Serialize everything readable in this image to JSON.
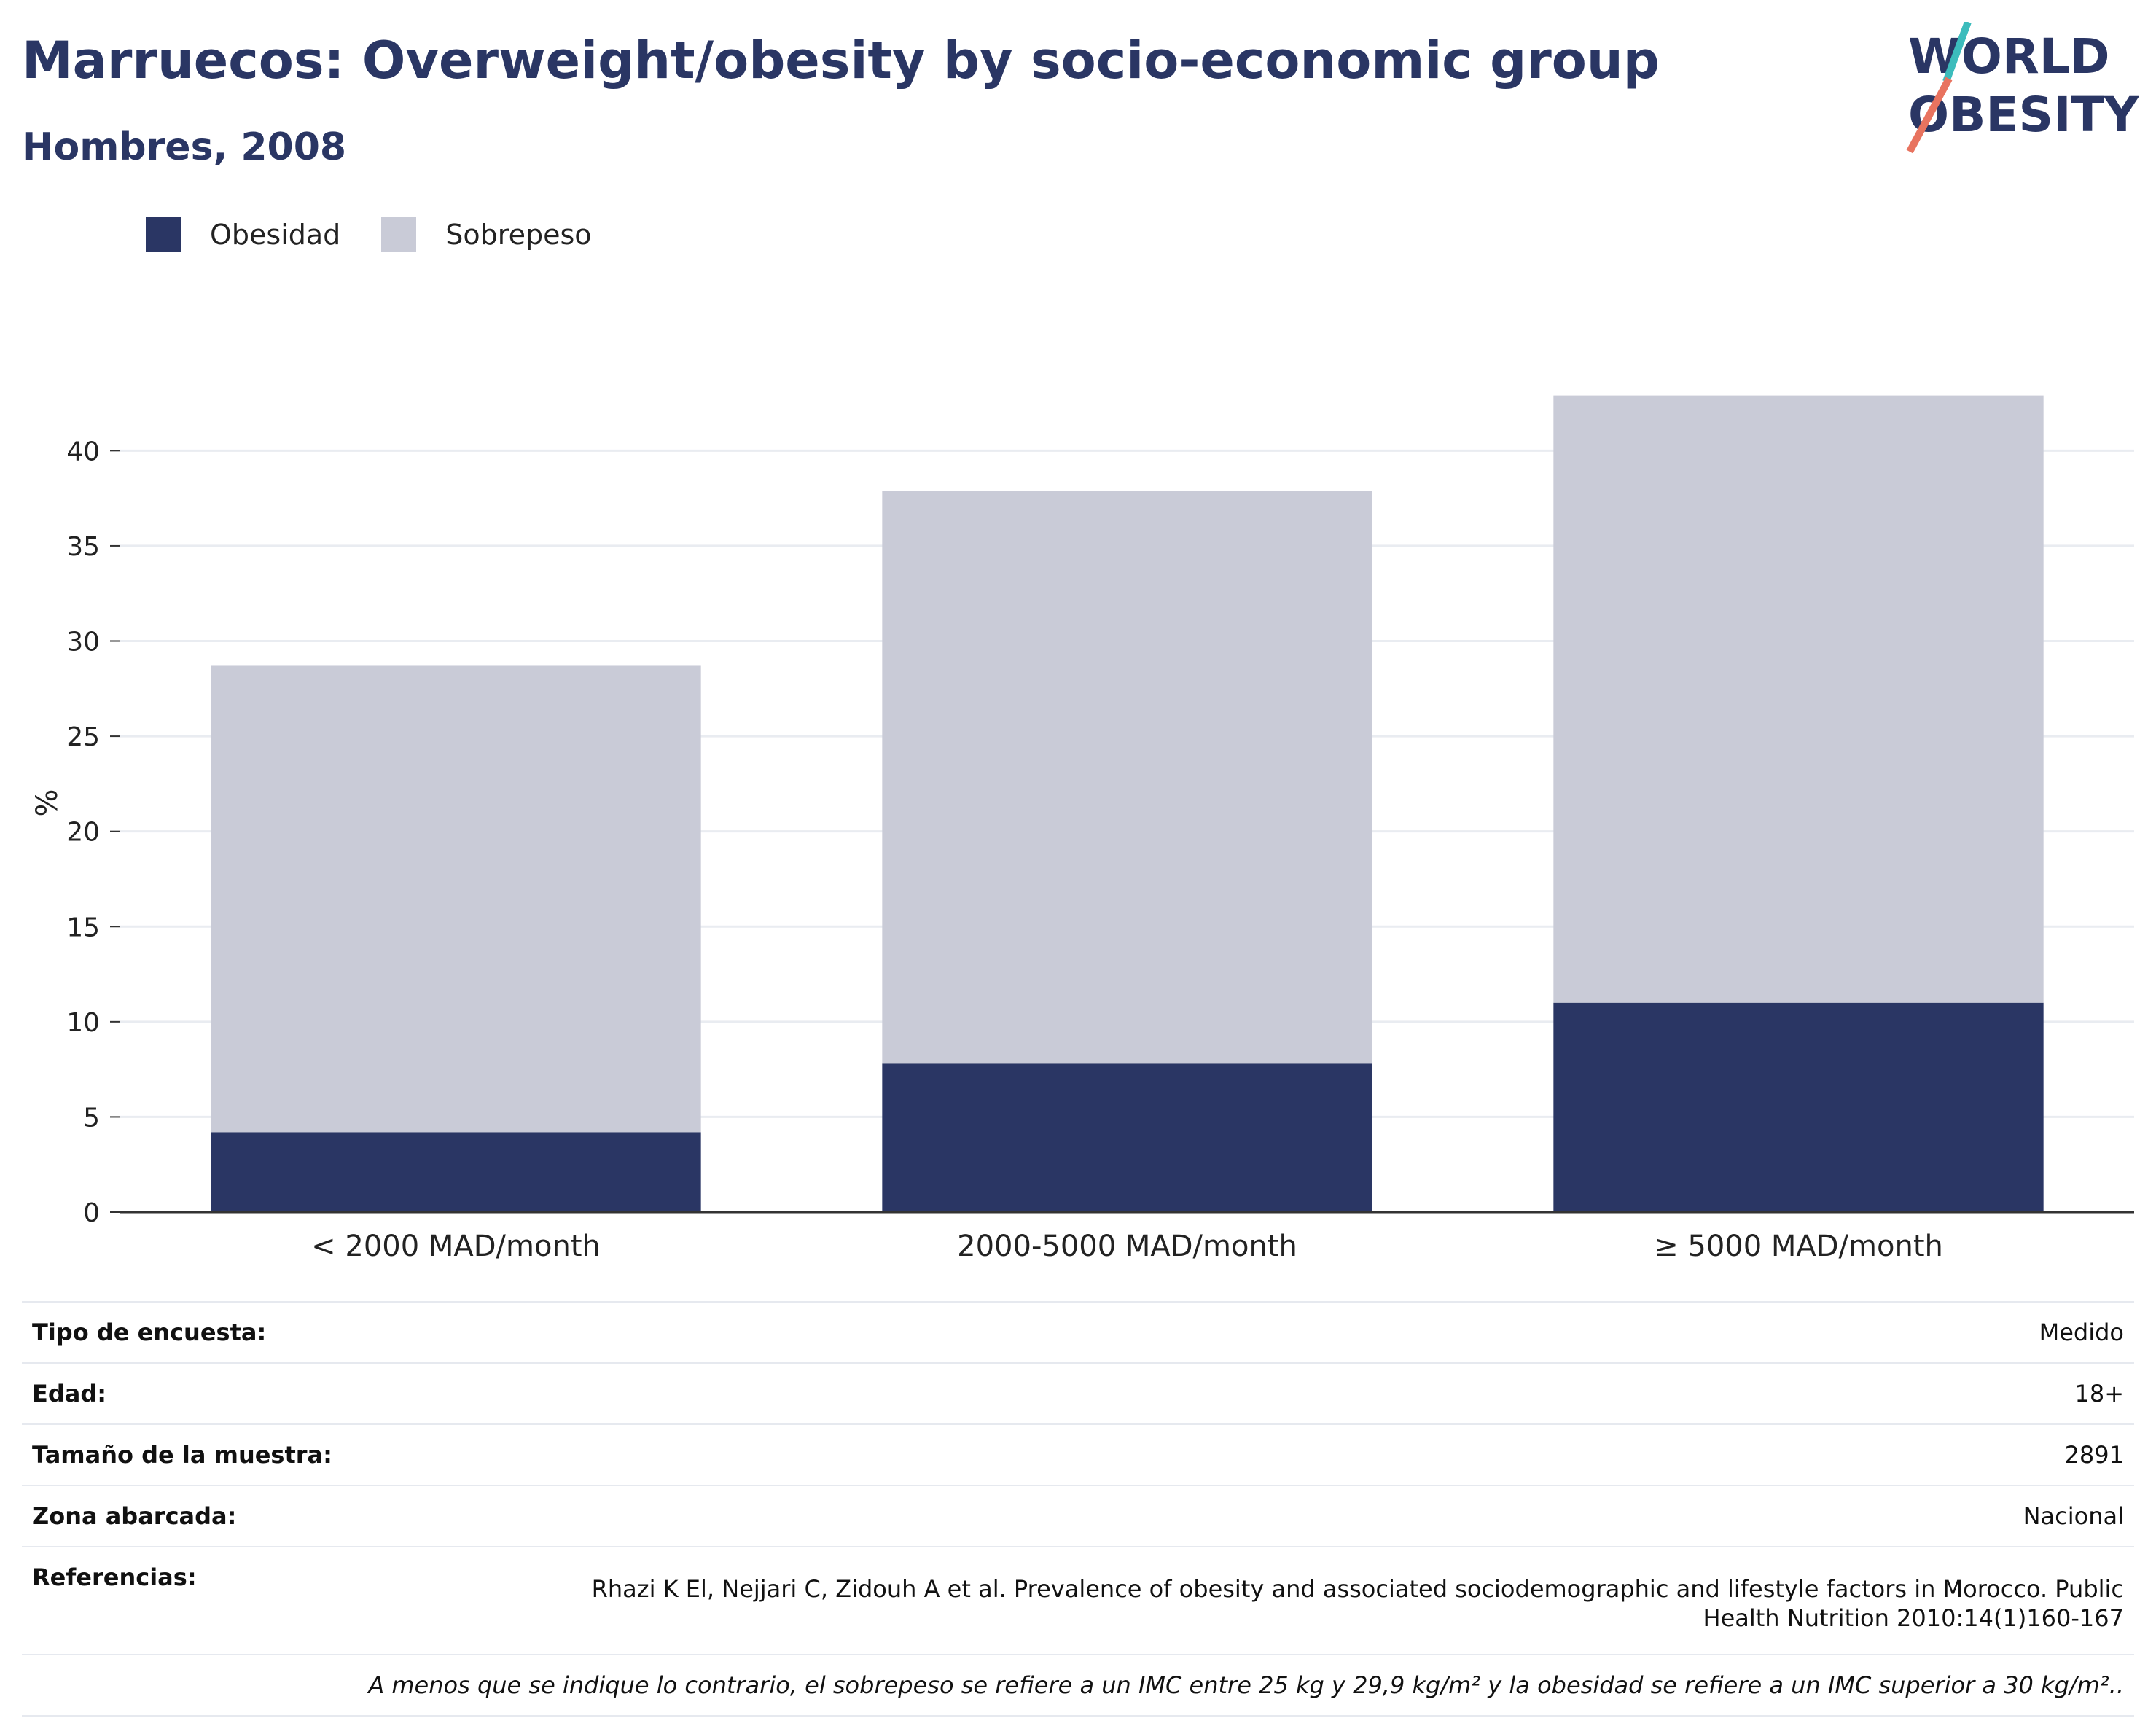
{
  "header": {
    "title": "Marruecos: Overweight/obesity by socio-economic group",
    "subtitle": "Hombres, 2008"
  },
  "logo": {
    "line1": "WORLD",
    "line2": "OBESITY"
  },
  "colors": {
    "obesidad": "#2a3664",
    "sobrepeso": "#c9cbd7",
    "accent_teal": "#3cbcbc",
    "accent_coral": "#e8735f",
    "grid": "#e9ecf1",
    "axis": "#333333"
  },
  "chart_data": {
    "type": "bar",
    "stacked": true,
    "categories": [
      "< 2000 MAD/month",
      "2000-5000 MAD/month",
      "≥ 5000 MAD/month"
    ],
    "series": [
      {
        "name": "Obesidad",
        "values": [
          4.2,
          7.8,
          11.0
        ]
      },
      {
        "name": "Sobrepeso",
        "values": [
          24.5,
          30.1,
          31.9
        ]
      }
    ],
    "totals": [
      28.7,
      37.9,
      42.9
    ],
    "xlabel": "",
    "ylabel": "%",
    "ylim": [
      0,
      43
    ],
    "yticks": [
      0,
      5,
      10,
      15,
      20,
      25,
      30,
      35,
      40
    ],
    "grid": true,
    "legend_position": "top-left"
  },
  "info": {
    "rows": [
      {
        "label": "Tipo de encuesta:",
        "value": "Medido"
      },
      {
        "label": "Edad:",
        "value": "18+"
      },
      {
        "label": "Tamaño de la muestra:",
        "value": "2891"
      },
      {
        "label": "Zona abarcada:",
        "value": "Nacional"
      }
    ],
    "references_label": "Referencias:",
    "references_line1": "Rhazi K El, Nejjari C, Zidouh A et al. Prevalence of obesity and associated sociodemographic and lifestyle factors in Morocco. Public",
    "references_line2": "Health Nutrition 2010:14(1)160-167",
    "note": "A menos que se indique lo contrario, el sobrepeso se refiere a un IMC entre 25 kg y 29,9 kg/m² y la obesidad se refiere a un IMC superior a 30 kg/m².."
  }
}
